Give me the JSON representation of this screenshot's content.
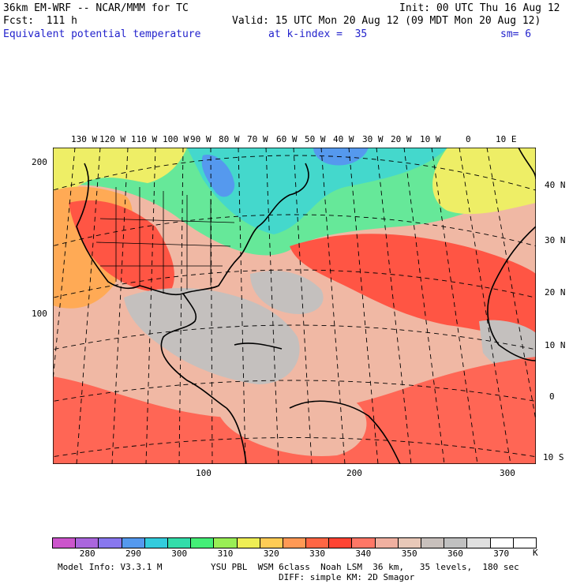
{
  "header": {
    "model_title": "36km EM-WRF -- NCAR/MMM for TC",
    "init": "Init: 00 UTC Thu 16 Aug 12",
    "forecast": "Fcst:  111 h",
    "valid": "Valid: 15 UTC Mon 20 Aug 12 (09 MDT Mon 20 Aug 12)",
    "field_name": "Equivalent potential temperature",
    "level": "at k-index =  35",
    "smoothing": "sm= 6"
  },
  "map": {
    "longitude_labels": [
      "130 W",
      "120 W",
      "110 W",
      "100 W",
      "90 W",
      "80 W",
      "70 W",
      "60 W",
      "50 W",
      "40 W",
      "30 W",
      "20 W",
      "10 W",
      "0",
      "10 E"
    ],
    "latitude_labels": [
      "40 N",
      "30 N",
      "20 N",
      "10 N",
      "0",
      "10 S"
    ],
    "grid_x_labels": [
      "100",
      "200",
      "300"
    ],
    "grid_y_labels": [
      "200",
      "100"
    ]
  },
  "colorbar": {
    "labels": [
      "280",
      "290",
      "300",
      "310",
      "320",
      "330",
      "340",
      "350",
      "360",
      "370"
    ],
    "unit": "K",
    "colors": [
      "#cc55cc",
      "#aa66dd",
      "#8877ee",
      "#5599ee",
      "#33ccdd",
      "#33ddaa",
      "#44ee77",
      "#99ee55",
      "#eeee55",
      "#ffcc55",
      "#ff9955",
      "#ff6644",
      "#ff4433",
      "#ff7766",
      "#f0b0a0",
      "#e8c8b8",
      "#c8c0bc",
      "#c0c0c0",
      "#e0e0e0",
      "#ffffff",
      "#ffffff"
    ]
  },
  "footer": {
    "model_info": "Model Info: V3.3.1 M",
    "physics_line1": "YSU PBL  WSM 6class  Noah LSM  36 km,   35 levels,  180 sec",
    "physics_line2": "DIFF: simple KM: 2D Smagor"
  }
}
